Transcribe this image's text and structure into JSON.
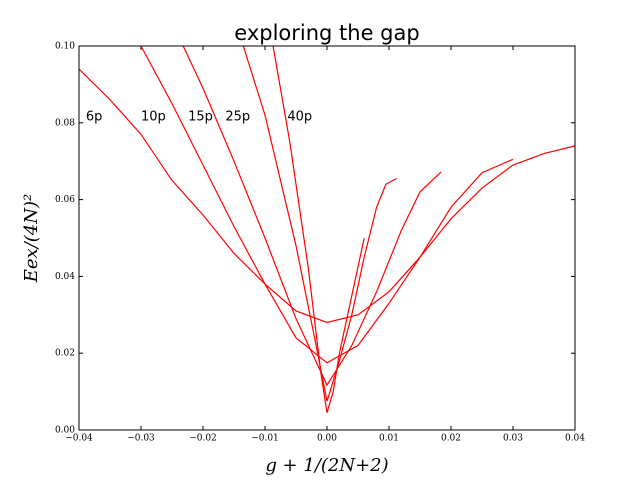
{
  "chart_data": {
    "type": "line",
    "title": "exploring the gap",
    "xlabel": "g + 1/(2N+2)",
    "ylabel": "Eex/(4N)²",
    "xlim": [
      -0.04,
      0.04
    ],
    "ylim": [
      0,
      0.1
    ],
    "xticks": [
      {
        "value": -0.04,
        "label": "−0.04"
      },
      {
        "value": -0.03,
        "label": "−0.03"
      },
      {
        "value": -0.02,
        "label": "−0.02"
      },
      {
        "value": -0.01,
        "label": "−0.01"
      },
      {
        "value": 0,
        "label": "0.00"
      },
      0.01,
      0.02,
      0.03,
      0.04
    ],
    "yticks": [
      {
        "value": 0,
        "label": "0.00"
      },
      0.02,
      0.04,
      0.06,
      0.08,
      {
        "value": 0.1,
        "label": "0.10"
      }
    ],
    "grid": false,
    "series": [
      {
        "color": "#ff0000",
        "x": [
          -0.04,
          -0.035,
          -0.03,
          -0.025,
          -0.02,
          -0.015,
          -0.01,
          -0.005,
          0,
          0.005,
          0.01,
          0.015,
          0.02,
          0.025,
          0.03,
          0.035,
          0.04
        ],
        "values": [
          0.094,
          0.086,
          0.077,
          0.065,
          0.056,
          0.046,
          0.038,
          0.031,
          0.028,
          0.03,
          0.036,
          0.045,
          0.055,
          0.063,
          0.069,
          0.072,
          0.074
        ]
      },
      {
        "color": "#ff0000",
        "x": [
          -0.03,
          -0.025,
          -0.02,
          -0.015,
          -0.01,
          -0.005,
          0,
          0.005,
          0.01,
          0.015,
          0.02,
          0.025,
          0.03
        ],
        "values": [
          0.1,
          0.085,
          0.069,
          0.053,
          0.038,
          0.024,
          0.0175,
          0.022,
          0.033,
          0.045,
          0.058,
          0.067,
          0.0705
        ]
      },
      {
        "color": "#ff0000",
        "x": [
          -0.0232,
          -0.02,
          -0.015,
          -0.01,
          -0.005,
          0,
          0.004,
          0.008,
          0.012,
          0.015,
          0.0184
        ],
        "values": [
          0.1,
          0.089,
          0.07,
          0.05,
          0.029,
          0.0117,
          0.022,
          0.036,
          0.052,
          0.062,
          0.0672
        ]
      },
      {
        "color": "#ff0000",
        "x": [
          -0.0135,
          -0.01,
          -0.005,
          -0.002,
          0,
          0.002,
          0.004,
          0.006,
          0.008,
          0.0095,
          0.0112
        ],
        "values": [
          0.1,
          0.082,
          0.048,
          0.024,
          0.0075,
          0.018,
          0.03,
          0.045,
          0.058,
          0.064,
          0.0655
        ]
      },
      {
        "color": "#ff0000",
        "x": [
          -0.0087,
          -0.006,
          -0.003,
          -0.001,
          0,
          0.001,
          0.002,
          0.004,
          0.006
        ],
        "values": [
          0.1,
          0.075,
          0.042,
          0.015,
          0.0045,
          0.01,
          0.02,
          0.035,
          0.05
        ]
      }
    ],
    "annotations": [
      {
        "text": "6p",
        "x": -0.0389,
        "y": 0.0815
      },
      {
        "text": "10p",
        "x": -0.03,
        "y": 0.0815
      },
      {
        "text": "15p",
        "x": -0.0224,
        "y": 0.0815
      },
      {
        "text": "25p",
        "x": -0.0164,
        "y": 0.0815
      },
      {
        "text": "40p",
        "x": -0.0064,
        "y": 0.0815
      }
    ]
  }
}
